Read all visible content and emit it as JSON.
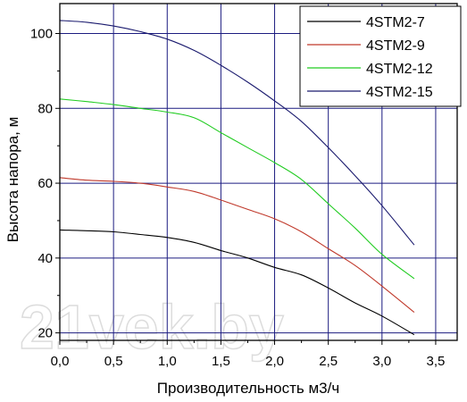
{
  "chart_data": {
    "type": "line",
    "xlabel": "Производительность м3/ч",
    "ylabel": "Высота напора, м",
    "xlim": [
      0,
      3.7
    ],
    "ylim": [
      18,
      108
    ],
    "xticks": [
      0,
      0.5,
      1.0,
      1.5,
      2.0,
      2.5,
      3.0,
      3.5
    ],
    "xtick_labels": [
      "0,0",
      "0,5",
      "1,0",
      "1,5",
      "2,0",
      "2,5",
      "3,0",
      "3,5"
    ],
    "yticks": [
      20,
      40,
      60,
      80,
      100
    ],
    "ytick_labels": [
      "20",
      "40",
      "60",
      "80",
      "100"
    ],
    "grid": true,
    "legend_position": "top-right",
    "series": [
      {
        "name": "4STM2-7",
        "color": "#000000",
        "points": [
          [
            0,
            47.5
          ],
          [
            0.25,
            47.3
          ],
          [
            0.5,
            47
          ],
          [
            0.75,
            46.3
          ],
          [
            1.0,
            45.5
          ],
          [
            1.25,
            44.2
          ],
          [
            1.5,
            42
          ],
          [
            1.75,
            40
          ],
          [
            2.0,
            37.5
          ],
          [
            2.25,
            35.5
          ],
          [
            2.5,
            32
          ],
          [
            2.75,
            28
          ],
          [
            3.0,
            24.5
          ],
          [
            3.3,
            19.5
          ]
        ]
      },
      {
        "name": "4STM2-9",
        "color": "#c0392b",
        "points": [
          [
            0,
            61.5
          ],
          [
            0.25,
            60.8
          ],
          [
            0.5,
            60.5
          ],
          [
            0.75,
            60
          ],
          [
            1.0,
            59
          ],
          [
            1.25,
            57.8
          ],
          [
            1.5,
            55.5
          ],
          [
            1.75,
            53
          ],
          [
            2.0,
            50.5
          ],
          [
            2.25,
            47
          ],
          [
            2.5,
            42.5
          ],
          [
            2.75,
            38
          ],
          [
            3.0,
            32.5
          ],
          [
            3.3,
            25.5
          ]
        ]
      },
      {
        "name": "4STM2-12",
        "color": "#22cc22",
        "points": [
          [
            0,
            82.5
          ],
          [
            0.25,
            81.8
          ],
          [
            0.5,
            81
          ],
          [
            0.75,
            80
          ],
          [
            1.0,
            79
          ],
          [
            1.25,
            77.5
          ],
          [
            1.5,
            73.5
          ],
          [
            1.75,
            69.5
          ],
          [
            2.0,
            65.5
          ],
          [
            2.25,
            61
          ],
          [
            2.5,
            54.5
          ],
          [
            2.75,
            48
          ],
          [
            3.0,
            41
          ],
          [
            3.3,
            34.5
          ]
        ]
      },
      {
        "name": "4STM2-15",
        "color": "#1a1a6e",
        "points": [
          [
            0,
            103.5
          ],
          [
            0.25,
            103
          ],
          [
            0.5,
            102
          ],
          [
            0.75,
            100.5
          ],
          [
            1.0,
            98.5
          ],
          [
            1.25,
            95.5
          ],
          [
            1.5,
            91.5
          ],
          [
            1.75,
            87
          ],
          [
            2.0,
            82
          ],
          [
            2.25,
            76.5
          ],
          [
            2.5,
            69.5
          ],
          [
            2.75,
            62
          ],
          [
            3.0,
            54
          ],
          [
            3.3,
            43.5
          ]
        ]
      }
    ]
  },
  "watermark_text": "21vek.by"
}
